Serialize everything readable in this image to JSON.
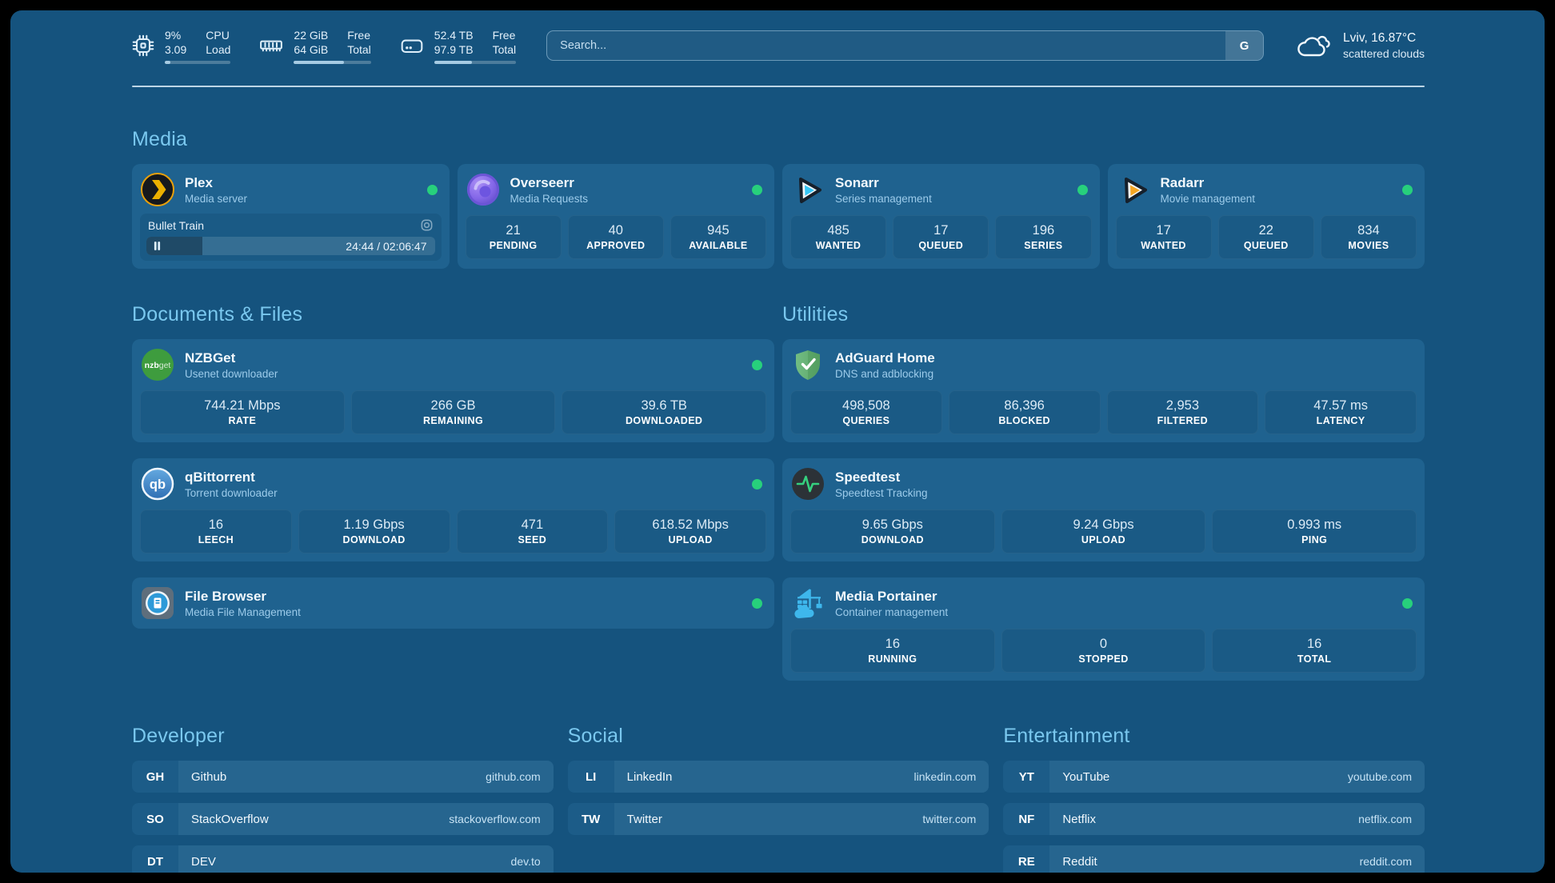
{
  "header": {
    "metrics": [
      {
        "icon": "cpu-icon",
        "value_top": "9%",
        "value_bottom": "3.09",
        "label_top": "CPU",
        "label_bottom": "Load",
        "progress_pct": 9
      },
      {
        "icon": "memory-icon",
        "value_top": "22 GiB",
        "value_bottom": "64 GiB",
        "label_top": "Free",
        "label_bottom": "Total",
        "progress_pct": 65
      },
      {
        "icon": "storage-icon",
        "value_top": "52.4 TB",
        "value_bottom": "97.9 TB",
        "label_top": "Free",
        "label_bottom": "Total",
        "progress_pct": 46
      }
    ],
    "search": {
      "placeholder": "Search...",
      "engine_button_label": "G"
    },
    "weather": {
      "location_temperature": "Lviv, 16.87°C",
      "condition": "scattered clouds"
    }
  },
  "sections": {
    "media": {
      "title": "Media",
      "cards": [
        {
          "app": "Plex",
          "subtitle": "Media server",
          "online": true,
          "now_playing": {
            "title": "Bullet Train",
            "time_display": "24:44 / 02:06:47",
            "progress_pct": 19.5
          }
        },
        {
          "app": "Overseerr",
          "subtitle": "Media Requests",
          "online": true,
          "stats": [
            {
              "value": "21",
              "label": "PENDING"
            },
            {
              "value": "40",
              "label": "APPROVED"
            },
            {
              "value": "945",
              "label": "AVAILABLE"
            }
          ]
        },
        {
          "app": "Sonarr",
          "subtitle": "Series management",
          "online": true,
          "stats": [
            {
              "value": "485",
              "label": "WANTED"
            },
            {
              "value": "17",
              "label": "QUEUED"
            },
            {
              "value": "196",
              "label": "SERIES"
            }
          ]
        },
        {
          "app": "Radarr",
          "subtitle": "Movie management",
          "online": true,
          "stats": [
            {
              "value": "17",
              "label": "WANTED"
            },
            {
              "value": "22",
              "label": "QUEUED"
            },
            {
              "value": "834",
              "label": "MOVIES"
            }
          ]
        }
      ]
    },
    "documents": {
      "title": "Documents & Files",
      "cards": [
        {
          "app": "NZBGet",
          "subtitle": "Usenet downloader",
          "online": true,
          "stats": [
            {
              "value": "744.21 Mbps",
              "label": "RATE"
            },
            {
              "value": "266 GB",
              "label": "REMAINING"
            },
            {
              "value": "39.6 TB",
              "label": "DOWNLOADED"
            }
          ]
        },
        {
          "app": "qBittorrent",
          "subtitle": "Torrent downloader",
          "online": true,
          "stats": [
            {
              "value": "16",
              "label": "LEECH"
            },
            {
              "value": "1.19 Gbps",
              "label": "DOWNLOAD"
            },
            {
              "value": "471",
              "label": "SEED"
            },
            {
              "value": "618.52 Mbps",
              "label": "UPLOAD"
            }
          ]
        },
        {
          "app": "File Browser",
          "subtitle": "Media File Management",
          "online": true,
          "stats": []
        }
      ]
    },
    "utilities": {
      "title": "Utilities",
      "cards": [
        {
          "app": "AdGuard Home",
          "subtitle": "DNS and adblocking",
          "stats": [
            {
              "value": "498,508",
              "label": "QUERIES"
            },
            {
              "value": "86,396",
              "label": "BLOCKED"
            },
            {
              "value": "2,953",
              "label": "FILTERED"
            },
            {
              "value": "47.57 ms",
              "label": "LATENCY"
            }
          ]
        },
        {
          "app": "Speedtest",
          "subtitle": "Speedtest Tracking",
          "stats": [
            {
              "value": "9.65 Gbps",
              "label": "DOWNLOAD"
            },
            {
              "value": "9.24 Gbps",
              "label": "UPLOAD"
            },
            {
              "value": "0.993 ms",
              "label": "PING"
            }
          ]
        },
        {
          "app": "Media Portainer",
          "subtitle": "Container management",
          "online": true,
          "stats": [
            {
              "value": "16",
              "label": "RUNNING"
            },
            {
              "value": "0",
              "label": "STOPPED"
            },
            {
              "value": "16",
              "label": "TOTAL"
            }
          ]
        }
      ]
    },
    "links": {
      "groups": [
        {
          "title": "Developer",
          "items": [
            {
              "tag": "GH",
              "name": "Github",
              "url": "github.com"
            },
            {
              "tag": "SO",
              "name": "StackOverflow",
              "url": "stackoverflow.com"
            },
            {
              "tag": "DT",
              "name": "DEV",
              "url": "dev.to"
            }
          ]
        },
        {
          "title": "Social",
          "items": [
            {
              "tag": "LI",
              "name": "LinkedIn",
              "url": "linkedin.com"
            },
            {
              "tag": "TW",
              "name": "Twitter",
              "url": "twitter.com"
            }
          ]
        },
        {
          "title": "Entertainment",
          "items": [
            {
              "tag": "YT",
              "name": "YouTube",
              "url": "youtube.com"
            },
            {
              "tag": "NF",
              "name": "Netflix",
              "url": "netflix.com"
            },
            {
              "tag": "RE",
              "name": "Reddit",
              "url": "reddit.com"
            }
          ]
        }
      ]
    }
  },
  "colors": {
    "background": "#15537E",
    "card": "#1F628F",
    "panel": "#1A5A85",
    "accent": "#7AC8EF",
    "status_online": "#27D07C"
  }
}
